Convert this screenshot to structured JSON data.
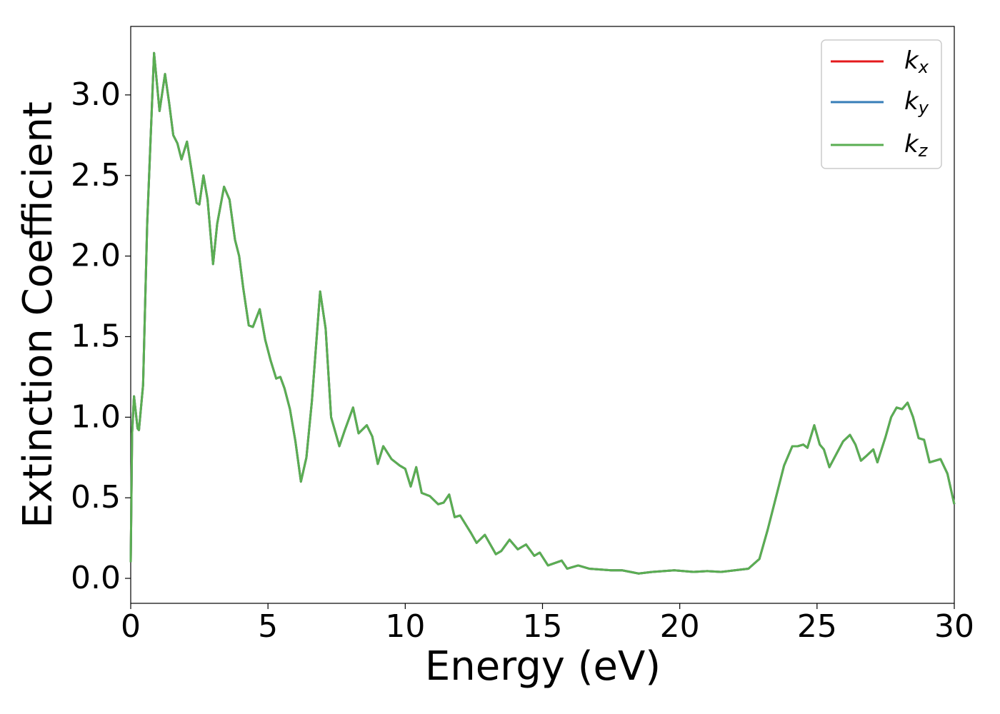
{
  "chart_data": {
    "type": "line",
    "x_label": "Energy (eV)",
    "y_label": "Extinction Coefficient",
    "x": [
      0,
      0.05,
      0.12,
      0.25,
      0.3,
      0.45,
      0.6,
      0.85,
      1.05,
      1.25,
      1.4,
      1.55,
      1.7,
      1.85,
      2.05,
      2.2,
      2.4,
      2.5,
      2.65,
      2.8,
      3.0,
      3.15,
      3.4,
      3.6,
      3.8,
      3.95,
      4.1,
      4.3,
      4.45,
      4.7,
      4.9,
      5.1,
      5.3,
      5.45,
      5.6,
      5.8,
      6.0,
      6.2,
      6.4,
      6.6,
      6.9,
      7.1,
      7.3,
      7.6,
      7.8,
      8.1,
      8.3,
      8.6,
      8.8,
      9.0,
      9.2,
      9.5,
      9.8,
      10.0,
      10.2,
      10.4,
      10.6,
      10.9,
      11.2,
      11.4,
      11.6,
      11.8,
      12.0,
      12.4,
      12.6,
      12.9,
      13.3,
      13.5,
      13.8,
      14.1,
      14.4,
      14.7,
      14.9,
      15.2,
      15.7,
      15.9,
      16.3,
      16.7,
      17.5,
      17.9,
      18.5,
      19.0,
      19.8,
      20.5,
      21.0,
      21.5,
      22.0,
      22.5,
      22.9,
      23.2,
      23.5,
      23.8,
      24.1,
      24.3,
      24.5,
      24.65,
      24.9,
      25.1,
      25.25,
      25.45,
      25.7,
      25.95,
      26.2,
      26.4,
      26.6,
      26.8,
      27.05,
      27.2,
      27.5,
      27.7,
      27.9,
      28.1,
      28.3,
      28.5,
      28.7,
      28.9,
      29.1,
      29.5,
      29.75,
      30.0
    ],
    "series": [
      {
        "name": "kx",
        "color": "#e41a1c",
        "values": [
          0.1,
          0.9,
          1.13,
          0.93,
          0.92,
          1.2,
          2.2,
          3.26,
          2.9,
          3.13,
          2.95,
          2.75,
          2.7,
          2.6,
          2.71,
          2.55,
          2.33,
          2.32,
          2.5,
          2.35,
          1.95,
          2.2,
          2.43,
          2.35,
          2.1,
          2.0,
          1.8,
          1.57,
          1.56,
          1.67,
          1.48,
          1.35,
          1.24,
          1.25,
          1.18,
          1.05,
          0.85,
          0.6,
          0.75,
          1.1,
          1.78,
          1.55,
          1.0,
          0.82,
          0.92,
          1.06,
          0.9,
          0.95,
          0.88,
          0.71,
          0.82,
          0.74,
          0.7,
          0.68,
          0.57,
          0.69,
          0.53,
          0.51,
          0.46,
          0.47,
          0.52,
          0.38,
          0.39,
          0.28,
          0.22,
          0.27,
          0.15,
          0.17,
          0.24,
          0.18,
          0.21,
          0.14,
          0.16,
          0.08,
          0.11,
          0.06,
          0.08,
          0.06,
          0.05,
          0.05,
          0.03,
          0.04,
          0.05,
          0.04,
          0.045,
          0.04,
          0.05,
          0.06,
          0.12,
          0.3,
          0.5,
          0.7,
          0.82,
          0.82,
          0.83,
          0.81,
          0.95,
          0.83,
          0.8,
          0.69,
          0.77,
          0.85,
          0.89,
          0.83,
          0.73,
          0.76,
          0.8,
          0.72,
          0.88,
          1.0,
          1.06,
          1.05,
          1.09,
          1.0,
          0.87,
          0.86,
          0.72,
          0.74,
          0.65,
          0.46
        ]
      },
      {
        "name": "ky",
        "color": "#377eb8",
        "values": [
          0.1,
          0.9,
          1.13,
          0.93,
          0.92,
          1.2,
          2.2,
          3.26,
          2.9,
          3.13,
          2.95,
          2.75,
          2.7,
          2.6,
          2.71,
          2.55,
          2.33,
          2.32,
          2.5,
          2.35,
          1.95,
          2.2,
          2.43,
          2.35,
          2.1,
          2.0,
          1.8,
          1.57,
          1.56,
          1.67,
          1.48,
          1.35,
          1.24,
          1.25,
          1.18,
          1.05,
          0.85,
          0.6,
          0.75,
          1.1,
          1.78,
          1.55,
          1.0,
          0.82,
          0.92,
          1.06,
          0.9,
          0.95,
          0.88,
          0.71,
          0.82,
          0.74,
          0.7,
          0.68,
          0.57,
          0.69,
          0.53,
          0.51,
          0.46,
          0.47,
          0.52,
          0.38,
          0.39,
          0.28,
          0.22,
          0.27,
          0.15,
          0.17,
          0.24,
          0.18,
          0.21,
          0.14,
          0.16,
          0.08,
          0.11,
          0.06,
          0.08,
          0.06,
          0.05,
          0.05,
          0.03,
          0.04,
          0.05,
          0.04,
          0.045,
          0.04,
          0.05,
          0.06,
          0.12,
          0.3,
          0.5,
          0.7,
          0.82,
          0.82,
          0.83,
          0.81,
          0.95,
          0.83,
          0.8,
          0.69,
          0.77,
          0.85,
          0.89,
          0.83,
          0.73,
          0.76,
          0.8,
          0.72,
          0.88,
          1.0,
          1.06,
          1.05,
          1.09,
          1.0,
          0.87,
          0.86,
          0.72,
          0.74,
          0.65,
          0.46
        ]
      },
      {
        "name": "kz",
        "color": "#5aae52",
        "values": [
          0.1,
          0.9,
          1.13,
          0.93,
          0.92,
          1.2,
          2.2,
          3.26,
          2.9,
          3.13,
          2.95,
          2.75,
          2.7,
          2.6,
          2.71,
          2.55,
          2.33,
          2.32,
          2.5,
          2.35,
          1.95,
          2.2,
          2.43,
          2.35,
          2.1,
          2.0,
          1.8,
          1.57,
          1.56,
          1.67,
          1.48,
          1.35,
          1.24,
          1.25,
          1.18,
          1.05,
          0.85,
          0.6,
          0.75,
          1.1,
          1.78,
          1.55,
          1.0,
          0.82,
          0.92,
          1.06,
          0.9,
          0.95,
          0.88,
          0.71,
          0.82,
          0.74,
          0.7,
          0.68,
          0.57,
          0.69,
          0.53,
          0.51,
          0.46,
          0.47,
          0.52,
          0.38,
          0.39,
          0.28,
          0.22,
          0.27,
          0.15,
          0.17,
          0.24,
          0.18,
          0.21,
          0.14,
          0.16,
          0.08,
          0.11,
          0.06,
          0.08,
          0.06,
          0.05,
          0.05,
          0.03,
          0.04,
          0.05,
          0.04,
          0.045,
          0.04,
          0.05,
          0.06,
          0.12,
          0.3,
          0.5,
          0.7,
          0.82,
          0.82,
          0.83,
          0.81,
          0.95,
          0.83,
          0.8,
          0.69,
          0.77,
          0.85,
          0.89,
          0.83,
          0.73,
          0.76,
          0.8,
          0.72,
          0.88,
          1.0,
          1.06,
          1.05,
          1.09,
          1.0,
          0.87,
          0.86,
          0.72,
          0.74,
          0.65,
          0.46
        ]
      }
    ],
    "xlim": [
      0,
      30
    ],
    "xticks": [
      0,
      5,
      10,
      15,
      20,
      25,
      30
    ],
    "ylim": [
      -0.155,
      3.425
    ],
    "yticks": [
      {
        "value": 0,
        "label": "0.0"
      },
      0.5,
      {
        "value": 1,
        "label": "1.0"
      },
      1.5,
      {
        "value": 2,
        "label": "2.0"
      },
      2.5,
      {
        "value": 3,
        "label": "3.0"
      }
    ],
    "grid": false,
    "legend": "upper right"
  }
}
